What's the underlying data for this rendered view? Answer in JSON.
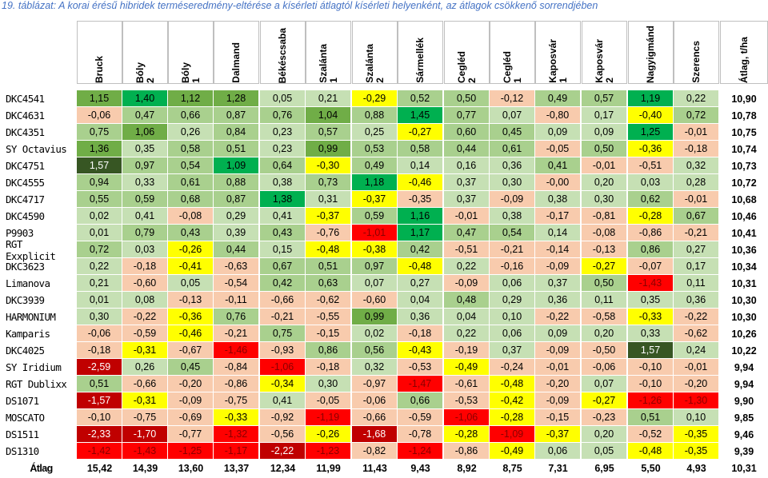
{
  "title": "19. táblázat: A korai érésű hibridek terméseredmény-eltérése a kísérleti átlagtól kísérleti helyenként, az átlagok csökkenő sorrendjében",
  "columns": [
    "Bruck",
    "Bóly\n2",
    "Bóly\n1",
    "Dalmand",
    "Békéscsaba",
    "Szalánta\n1",
    "Szalánta\n2",
    "Sármellék",
    "Cegléd\n2",
    "Cegléd\n1",
    "Kaposvár\n1",
    "Kaposvár\n2",
    "Nagyigmánd",
    "Szerencs",
    "Átlag, t/ha"
  ],
  "colors": {
    "dark_green": "#00b050",
    "mid_green": "#70ad47",
    "light_green": "#c6e0b4",
    "olive": "#a9d08e",
    "white": "#ffffff",
    "pink": "#f8cbad",
    "yellow": "#ffff00",
    "red": "#ff0000",
    "dark_red": "#c00000",
    "darkest_green": "#375623"
  },
  "rows": [
    {
      "name": "DKC4541",
      "values": [
        "1,15",
        "1,40",
        "1,12",
        "1,28",
        "0,05",
        "0,21",
        "-0,29",
        "0,52",
        "0,50",
        "-0,12",
        "0,49",
        "0,57",
        "1,19",
        "0,22"
      ],
      "avg": "10,90",
      "bg": [
        "mg",
        "dg",
        "mg",
        "mg",
        "lg",
        "lg",
        "y",
        "ol",
        "ol",
        "pk",
        "ol",
        "ol",
        "dg",
        "lg"
      ]
    },
    {
      "name": "DKC4631",
      "values": [
        "-0,06",
        "0,47",
        "0,66",
        "0,87",
        "0,76",
        "1,04",
        "0,88",
        "1,45",
        "0,77",
        "0,07",
        "-0,80",
        "0,17",
        "-0,40",
        "0,72"
      ],
      "avg": "10,78",
      "bg": [
        "pk",
        "ol",
        "ol",
        "ol",
        "ol",
        "mg",
        "ol",
        "dg",
        "ol",
        "lg",
        "pk",
        "lg",
        "y",
        "ol"
      ]
    },
    {
      "name": "DKC4351",
      "values": [
        "0,75",
        "1,06",
        "0,26",
        "0,84",
        "0,23",
        "0,57",
        "0,25",
        "-0,27",
        "0,60",
        "0,45",
        "0,09",
        "0,09",
        "1,25",
        "-0,01"
      ],
      "avg": "10,75",
      "bg": [
        "ol",
        "mg",
        "lg",
        "ol",
        "lg",
        "ol",
        "lg",
        "y",
        "ol",
        "ol",
        "lg",
        "lg",
        "dg",
        "pk"
      ]
    },
    {
      "name": "SY Octavius",
      "values": [
        "1,36",
        "0,35",
        "0,58",
        "0,51",
        "0,23",
        "0,99",
        "0,53",
        "0,58",
        "0,44",
        "0,61",
        "-0,05",
        "0,50",
        "-0,36",
        "-0,18"
      ],
      "avg": "10,74",
      "bg": [
        "mg",
        "lg",
        "ol",
        "ol",
        "lg",
        "mg",
        "ol",
        "ol",
        "ol",
        "ol",
        "pk",
        "ol",
        "y",
        "pk"
      ]
    },
    {
      "name": "DKC4751",
      "values": [
        "1,57",
        "0,97",
        "0,54",
        "1,09",
        "0,64",
        "-0,30",
        "0,49",
        "0,14",
        "0,16",
        "0,36",
        "0,41",
        "-0,01",
        "-0,51",
        "0,32"
      ],
      "avg": "10,73",
      "bg": [
        "dk",
        "ol",
        "ol",
        "dg",
        "ol",
        "y",
        "ol",
        "lg",
        "lg",
        "lg",
        "ol",
        "pk",
        "pk",
        "lg"
      ]
    },
    {
      "name": "DKC4555",
      "values": [
        "0,94",
        "0,33",
        "0,61",
        "0,88",
        "0,38",
        "0,73",
        "1,18",
        "-0,46",
        "0,37",
        "0,30",
        "-0,00",
        "0,20",
        "0,03",
        "0,28"
      ],
      "avg": "10,72",
      "bg": [
        "ol",
        "lg",
        "ol",
        "ol",
        "lg",
        "ol",
        "dg",
        "y",
        "lg",
        "lg",
        "pk",
        "lg",
        "lg",
        "lg"
      ]
    },
    {
      "name": "DKC4717",
      "values": [
        "0,55",
        "0,59",
        "0,68",
        "0,87",
        "1,38",
        "0,31",
        "-0,37",
        "-0,35",
        "0,37",
        "-0,09",
        "0,38",
        "0,30",
        "0,62",
        "-0,01"
      ],
      "avg": "10,68",
      "bg": [
        "ol",
        "ol",
        "ol",
        "ol",
        "dg",
        "lg",
        "y",
        "pk",
        "lg",
        "pk",
        "lg",
        "lg",
        "ol",
        "pk"
      ]
    },
    {
      "name": "DKC4590",
      "values": [
        "0,02",
        "0,41",
        "-0,08",
        "0,29",
        "0,41",
        "-0,37",
        "0,59",
        "1,16",
        "-0,01",
        "0,38",
        "-0,17",
        "-0,81",
        "-0,28",
        "0,67"
      ],
      "avg": "10,46",
      "bg": [
        "lg",
        "lg",
        "pk",
        "lg",
        "lg",
        "y",
        "ol",
        "dg",
        "pk",
        "lg",
        "pk",
        "pk",
        "y",
        "ol"
      ]
    },
    {
      "name": "P9903",
      "values": [
        "0,01",
        "0,79",
        "0,43",
        "0,39",
        "0,43",
        "-0,76",
        "-1,01",
        "1,17",
        "0,47",
        "0,54",
        "0,14",
        "-0,08",
        "-0,86",
        "-0,21"
      ],
      "avg": "10,41",
      "bg": [
        "lg",
        "ol",
        "ol",
        "lg",
        "ol",
        "pk",
        "rd",
        "dg",
        "ol",
        "ol",
        "lg",
        "pk",
        "pk",
        "pk"
      ]
    },
    {
      "name": "RGT Exxplicit",
      "values": [
        "0,72",
        "0,03",
        "-0,26",
        "0,44",
        "0,15",
        "-0,48",
        "-0,38",
        "0,42",
        "-0,51",
        "-0,21",
        "-0,14",
        "-0,13",
        "0,86",
        "0,27"
      ],
      "avg": "10,36",
      "bg": [
        "ol",
        "lg",
        "y",
        "ol",
        "lg",
        "y",
        "y",
        "ol",
        "pk",
        "pk",
        "pk",
        "pk",
        "ol",
        "lg"
      ]
    },
    {
      "name": "DKC3623",
      "values": [
        "0,22",
        "-0,18",
        "-0,41",
        "-0,63",
        "0,67",
        "0,51",
        "0,97",
        "-0,48",
        "0,22",
        "-0,16",
        "-0,09",
        "-0,27",
        "-0,07",
        "0,17"
      ],
      "avg": "10,34",
      "bg": [
        "lg",
        "pk",
        "y",
        "pk",
        "ol",
        "ol",
        "ol",
        "y",
        "lg",
        "pk",
        "pk",
        "y",
        "pk",
        "lg"
      ]
    },
    {
      "name": "Limanova",
      "values": [
        "0,21",
        "-0,60",
        "0,05",
        "-0,54",
        "0,42",
        "0,63",
        "0,07",
        "0,27",
        "-0,09",
        "0,06",
        "0,37",
        "0,50",
        "-1,43",
        "0,11"
      ],
      "avg": "10,31",
      "bg": [
        "lg",
        "pk",
        "lg",
        "pk",
        "ol",
        "ol",
        "lg",
        "lg",
        "pk",
        "lg",
        "lg",
        "ol",
        "rd",
        "lg"
      ]
    },
    {
      "name": "DKC3939",
      "values": [
        "0,01",
        "0,08",
        "-0,13",
        "-0,11",
        "-0,66",
        "-0,62",
        "-0,60",
        "0,04",
        "0,48",
        "0,29",
        "0,36",
        "0,11",
        "0,35",
        "0,36"
      ],
      "avg": "10,30",
      "bg": [
        "lg",
        "lg",
        "pk",
        "pk",
        "pk",
        "pk",
        "pk",
        "lg",
        "ol",
        "lg",
        "lg",
        "lg",
        "lg",
        "lg"
      ]
    },
    {
      "name": "HARMONIUM",
      "values": [
        "0,30",
        "-0,22",
        "-0,36",
        "0,76",
        "-0,21",
        "-0,55",
        "0,99",
        "0,36",
        "0,04",
        "0,10",
        "-0,22",
        "-0,58",
        "-0,33",
        "-0,22"
      ],
      "avg": "10,30",
      "bg": [
        "lg",
        "pk",
        "y",
        "ol",
        "pk",
        "pk",
        "mg",
        "lg",
        "lg",
        "lg",
        "pk",
        "pk",
        "y",
        "pk"
      ]
    },
    {
      "name": "Kamparis",
      "values": [
        "-0,06",
        "-0,59",
        "-0,46",
        "-0,21",
        "0,75",
        "-0,15",
        "0,02",
        "-0,18",
        "0,22",
        "0,06",
        "0,09",
        "0,20",
        "0,33",
        "-0,62"
      ],
      "avg": "10,26",
      "bg": [
        "pk",
        "pk",
        "y",
        "pk",
        "ol",
        "pk",
        "lg",
        "pk",
        "lg",
        "lg",
        "lg",
        "lg",
        "lg",
        "pk"
      ]
    },
    {
      "name": "DKC4025",
      "values": [
        "-0,18",
        "-0,31",
        "-0,67",
        "-1,46",
        "-0,93",
        "0,86",
        "0,56",
        "-0,43",
        "-0,19",
        "0,37",
        "-0,09",
        "-0,50",
        "1,57",
        "0,24"
      ],
      "avg": "10,22",
      "bg": [
        "pk",
        "y",
        "pk",
        "rd",
        "pk",
        "ol",
        "ol",
        "y",
        "pk",
        "lg",
        "pk",
        "pk",
        "dk",
        "lg"
      ]
    },
    {
      "name": "SY Iridium",
      "values": [
        "-2,59",
        "0,26",
        "0,45",
        "-0,84",
        "-1,06",
        "-0,18",
        "0,32",
        "-0,53",
        "-0,49",
        "-0,24",
        "-0,01",
        "-0,06",
        "-0,10",
        "-0,01"
      ],
      "avg": "9,94",
      "bg": [
        "dr",
        "lg",
        "ol",
        "pk",
        "rd",
        "pk",
        "lg",
        "pk",
        "y",
        "pk",
        "pk",
        "pk",
        "pk",
        "pk"
      ]
    },
    {
      "name": "RGT Dublixx",
      "values": [
        "0,51",
        "-0,66",
        "-0,20",
        "-0,86",
        "-0,34",
        "0,30",
        "-0,97",
        "-1,47",
        "-0,61",
        "-0,48",
        "-0,20",
        "0,07",
        "-0,10",
        "-0,20"
      ],
      "avg": "9,94",
      "bg": [
        "ol",
        "pk",
        "pk",
        "pk",
        "y",
        "lg",
        "pk",
        "rd",
        "pk",
        "y",
        "pk",
        "lg",
        "pk",
        "pk"
      ]
    },
    {
      "name": "DS1071",
      "values": [
        "-1,57",
        "-0,31",
        "-0,09",
        "-0,75",
        "0,41",
        "-0,05",
        "-0,06",
        "0,66",
        "-0,53",
        "-0,42",
        "-0,09",
        "-0,27",
        "-1,26",
        "-1,30"
      ],
      "avg": "9,90",
      "bg": [
        "dr",
        "y",
        "pk",
        "pk",
        "lg",
        "pk",
        "pk",
        "ol",
        "pk",
        "y",
        "pk",
        "y",
        "rd",
        "rd"
      ]
    },
    {
      "name": "MOSCATO",
      "values": [
        "-0,10",
        "-0,75",
        "-0,69",
        "-0,33",
        "-0,92",
        "-1,19",
        "-0,66",
        "-0,59",
        "-1,06",
        "-0,28",
        "-0,15",
        "-0,23",
        "0,51",
        "0,10"
      ],
      "avg": "9,85",
      "bg": [
        "pk",
        "pk",
        "pk",
        "y",
        "pk",
        "rd",
        "pk",
        "pk",
        "rd",
        "y",
        "pk",
        "pk",
        "ol",
        "lg"
      ]
    },
    {
      "name": "DS1511",
      "values": [
        "-2,33",
        "-1,70",
        "-0,77",
        "-1,32",
        "-0,56",
        "-0,26",
        "-1,68",
        "-0,78",
        "-0,28",
        "-1,09",
        "-0,37",
        "0,20",
        "-0,52",
        "-0,35"
      ],
      "avg": "9,46",
      "bg": [
        "dr",
        "dr",
        "pk",
        "rd",
        "pk",
        "y",
        "dr",
        "pk",
        "y",
        "rd",
        "y",
        "lg",
        "pk",
        "y"
      ]
    },
    {
      "name": "DS1310",
      "values": [
        "-1,42",
        "-1,43",
        "-1,25",
        "-1,17",
        "-2,22",
        "-1,23",
        "-0,82",
        "-1,24",
        "-0,86",
        "-0,49",
        "0,06",
        "0,05",
        "-0,48",
        "-0,35"
      ],
      "avg": "9,39",
      "bg": [
        "rd",
        "rd",
        "rd",
        "rd",
        "dr",
        "rd",
        "pk",
        "rd",
        "pk",
        "y",
        "lg",
        "lg",
        "y",
        "y"
      ]
    }
  ],
  "average_row": {
    "label": "Átlag",
    "values": [
      "15,42",
      "14,39",
      "13,60",
      "13,37",
      "12,34",
      "11,99",
      "11,43",
      "9,43",
      "8,92",
      "8,75",
      "7,31",
      "6,95",
      "5,50",
      "4,93",
      "10,31"
    ]
  }
}
